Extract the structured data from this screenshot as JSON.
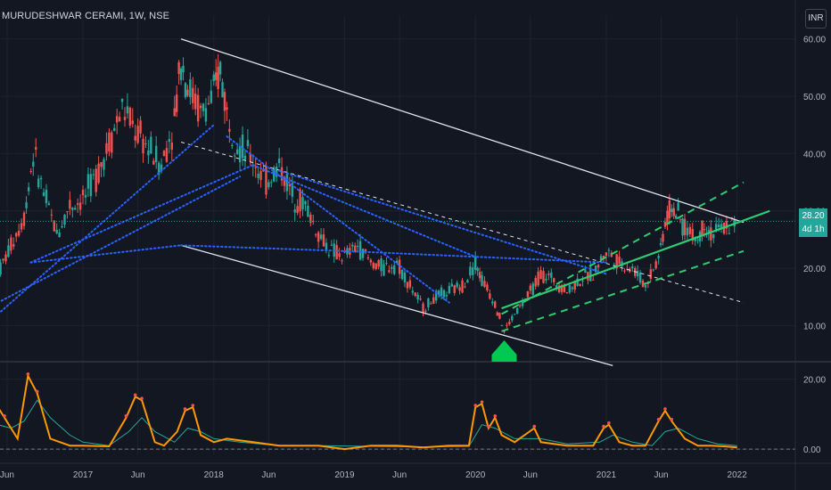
{
  "header": {
    "symbol_line": "MURUDESHWAR CERAMI, 1W, NSE",
    "currency": "INR"
  },
  "price_tag": {
    "price": "28.20",
    "countdown": "4d 1h"
  },
  "colors": {
    "background": "#131722",
    "up": "#26a69a",
    "down": "#ef5350",
    "channel": "#e0e3eb",
    "trend_dots": "#2962ff",
    "green_channel": "#2ecc71",
    "indicator_main": "#ff9800",
    "indicator_signal": "#26a69a"
  },
  "chart_data": [
    {
      "type": "candlestick",
      "title": "",
      "ylim": [
        4,
        64
      ],
      "y_ticks": [
        10,
        20,
        30,
        40,
        50,
        60
      ],
      "y_tick_labels": [
        "10.00",
        "20.00",
        "30.00",
        "40.00",
        "50.00",
        "60.00"
      ],
      "x_tick_labels": [
        "Jun",
        "2017",
        "Jun",
        "2018",
        "Jun",
        "2019",
        "Jun",
        "2020",
        "Jun",
        "2021",
        "Jun",
        "2022"
      ],
      "last_price": 28.2,
      "grid": true,
      "approx_weekly_close": [
        [
          2016.35,
          19
        ],
        [
          2016.45,
          24
        ],
        [
          2016.55,
          29
        ],
        [
          2016.62,
          40
        ],
        [
          2016.7,
          33
        ],
        [
          2016.8,
          26
        ],
        [
          2016.9,
          31
        ],
        [
          2017.0,
          32
        ],
        [
          2017.1,
          36
        ],
        [
          2017.2,
          42
        ],
        [
          2017.3,
          48
        ],
        [
          2017.4,
          44
        ],
        [
          2017.5,
          41
        ],
        [
          2017.6,
          38
        ],
        [
          2017.7,
          46
        ],
        [
          2017.75,
          57
        ],
        [
          2017.8,
          52
        ],
        [
          2017.9,
          47
        ],
        [
          2018.0,
          50
        ],
        [
          2018.05,
          55
        ],
        [
          2018.1,
          47
        ],
        [
          2018.2,
          41
        ],
        [
          2018.3,
          39
        ],
        [
          2018.4,
          35
        ],
        [
          2018.5,
          38
        ],
        [
          2018.6,
          33
        ],
        [
          2018.7,
          31
        ],
        [
          2018.8,
          26
        ],
        [
          2018.9,
          23
        ],
        [
          2019.0,
          22
        ],
        [
          2019.1,
          24
        ],
        [
          2019.2,
          21
        ],
        [
          2019.3,
          20
        ],
        [
          2019.4,
          21
        ],
        [
          2019.5,
          17
        ],
        [
          2019.6,
          13
        ],
        [
          2019.7,
          15
        ],
        [
          2019.8,
          16
        ],
        [
          2019.9,
          17
        ],
        [
          2020.0,
          21
        ],
        [
          2020.05,
          18
        ],
        [
          2020.15,
          14
        ],
        [
          2020.22,
          9
        ],
        [
          2020.3,
          12
        ],
        [
          2020.4,
          15
        ],
        [
          2020.5,
          19
        ],
        [
          2020.6,
          18
        ],
        [
          2020.7,
          16
        ],
        [
          2020.8,
          18
        ],
        [
          2020.9,
          19
        ],
        [
          2021.0,
          23
        ],
        [
          2021.1,
          21
        ],
        [
          2021.2,
          20
        ],
        [
          2021.3,
          17
        ],
        [
          2021.4,
          22
        ],
        [
          2021.45,
          28
        ],
        [
          2021.5,
          31
        ],
        [
          2021.55,
          29
        ],
        [
          2021.6,
          27
        ],
        [
          2021.7,
          25
        ],
        [
          2021.75,
          28
        ],
        [
          2021.8,
          26
        ],
        [
          2021.9,
          27
        ],
        [
          2022.0,
          28.2
        ]
      ],
      "annotations": {
        "upper_channel": {
          "from": [
            2017.75,
            60
          ],
          "to": [
            2022.05,
            28
          ]
        },
        "lower_channel": {
          "from": [
            2017.75,
            24
          ],
          "to": [
            2021.05,
            3
          ]
        },
        "mid_channel": {
          "from": [
            2017.75,
            42
          ],
          "to": [
            2022.05,
            14
          ]
        },
        "green_channel_upper": {
          "from": [
            2020.2,
            12
          ],
          "to": [
            2022.05,
            35
          ]
        },
        "green_channel_mid": {
          "from": [
            2020.2,
            13
          ],
          "to": [
            2022.25,
            30
          ]
        },
        "green_channel_lower": {
          "from": [
            2020.2,
            9
          ],
          "to": [
            2022.05,
            23
          ]
        },
        "horizontal_last_price": 28.2,
        "buy_marker_at": [
          2020.22,
          4
        ]
      }
    },
    {
      "type": "line",
      "title": "",
      "ylim": [
        -1.5,
        24
      ],
      "y_ticks": [
        0,
        20
      ],
      "y_tick_labels": [
        "0.00",
        "20.00"
      ],
      "baseline": 0,
      "series": [
        {
          "role": "main",
          "points": [
            [
              2016.35,
              12
            ],
            [
              2016.4,
              9
            ],
            [
              2016.5,
              3
            ],
            [
              2016.58,
              21
            ],
            [
              2016.65,
              16
            ],
            [
              2016.75,
              3
            ],
            [
              2016.9,
              1
            ],
            [
              2017.0,
              1
            ],
            [
              2017.2,
              0.8
            ],
            [
              2017.33,
              9
            ],
            [
              2017.4,
              15
            ],
            [
              2017.45,
              14
            ],
            [
              2017.55,
              2
            ],
            [
              2017.62,
              1
            ],
            [
              2017.72,
              5
            ],
            [
              2017.78,
              11
            ],
            [
              2017.84,
              12
            ],
            [
              2017.9,
              4
            ],
            [
              2018.0,
              2
            ],
            [
              2018.1,
              3
            ],
            [
              2018.3,
              2
            ],
            [
              2018.4,
              1.5
            ],
            [
              2018.5,
              1
            ],
            [
              2018.6,
              1
            ],
            [
              2018.8,
              1
            ],
            [
              2019.0,
              0
            ],
            [
              2019.2,
              1
            ],
            [
              2019.4,
              1
            ],
            [
              2019.6,
              0.5
            ],
            [
              2019.8,
              1
            ],
            [
              2019.95,
              1
            ],
            [
              2020.0,
              12
            ],
            [
              2020.05,
              13
            ],
            [
              2020.1,
              6
            ],
            [
              2020.15,
              9
            ],
            [
              2020.2,
              4
            ],
            [
              2020.3,
              2
            ],
            [
              2020.45,
              6
            ],
            [
              2020.5,
              2
            ],
            [
              2020.7,
              1
            ],
            [
              2020.9,
              1
            ],
            [
              2020.98,
              6
            ],
            [
              2021.02,
              7
            ],
            [
              2021.1,
              2
            ],
            [
              2021.2,
              1
            ],
            [
              2021.3,
              1
            ],
            [
              2021.4,
              8
            ],
            [
              2021.45,
              11
            ],
            [
              2021.5,
              8
            ],
            [
              2021.6,
              3
            ],
            [
              2021.7,
              1
            ],
            [
              2021.8,
              1
            ],
            [
              2021.9,
              0.8
            ],
            [
              2022.0,
              0.5
            ]
          ]
        },
        {
          "role": "signal",
          "points": [
            [
              2016.35,
              7
            ],
            [
              2016.45,
              6
            ],
            [
              2016.55,
              8
            ],
            [
              2016.65,
              14
            ],
            [
              2016.75,
              9
            ],
            [
              2016.9,
              4
            ],
            [
              2017.0,
              2
            ],
            [
              2017.2,
              1
            ],
            [
              2017.35,
              5
            ],
            [
              2017.45,
              9
            ],
            [
              2017.55,
              5
            ],
            [
              2017.7,
              2
            ],
            [
              2017.8,
              6
            ],
            [
              2017.9,
              5
            ],
            [
              2018.0,
              3
            ],
            [
              2018.2,
              2
            ],
            [
              2018.5,
              1
            ],
            [
              2018.8,
              1
            ],
            [
              2019.2,
              0.8
            ],
            [
              2019.6,
              0.6
            ],
            [
              2019.95,
              0.8
            ],
            [
              2020.05,
              7
            ],
            [
              2020.15,
              6
            ],
            [
              2020.3,
              3
            ],
            [
              2020.5,
              3
            ],
            [
              2020.7,
              1.5
            ],
            [
              2020.95,
              2
            ],
            [
              2021.05,
              4
            ],
            [
              2021.2,
              2
            ],
            [
              2021.35,
              1
            ],
            [
              2021.45,
              5
            ],
            [
              2021.55,
              6
            ],
            [
              2021.7,
              3
            ],
            [
              2021.85,
              1.5
            ],
            [
              2022.0,
              1
            ]
          ]
        }
      ]
    }
  ]
}
